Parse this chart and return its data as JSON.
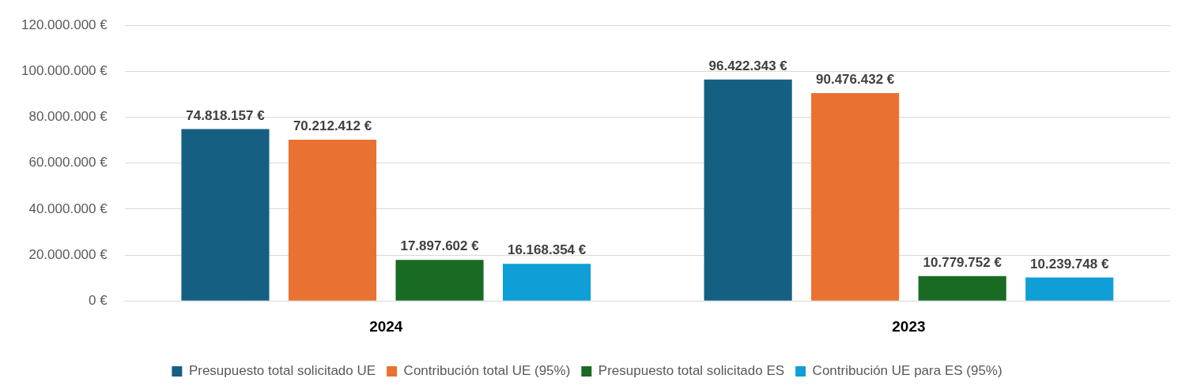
{
  "chart_data": {
    "type": "bar",
    "categories": [
      "2024",
      "2023"
    ],
    "series": [
      {
        "name": "Presupuesto total solicitado UE",
        "color": "#156082",
        "values": [
          74818157,
          96422343
        ],
        "value_labels": [
          "74.818.157 €",
          "96.422.343 €"
        ]
      },
      {
        "name": "Contribución total UE (95%)",
        "color": "#e97132",
        "values": [
          70212412,
          90476432
        ],
        "value_labels": [
          "70.212.412 €",
          "90.476.432 €"
        ]
      },
      {
        "name": "Presupuesto total solicitado ES",
        "color": "#196b24",
        "values": [
          17897602,
          10779752
        ],
        "value_labels": [
          "17.897.602 €",
          "10.779.752 €"
        ]
      },
      {
        "name": "Contribución UE para ES (95%)",
        "color": "#0f9ed5",
        "values": [
          16168354,
          10239748
        ],
        "value_labels": [
          "16.168.354 €",
          "10.239.748 €"
        ]
      }
    ],
    "ylim": [
      0,
      120000000
    ],
    "yticks": [
      {
        "value": 0,
        "label": "0 €"
      },
      {
        "value": 20000000,
        "label": "20.000.000 €"
      },
      {
        "value": 40000000,
        "label": "40.000.000 €"
      },
      {
        "value": 60000000,
        "label": "60.000.000 €"
      },
      {
        "value": 80000000,
        "label": "80.000.000 €"
      },
      {
        "value": 100000000,
        "label": "100.000.000 €"
      },
      {
        "value": 120000000,
        "label": "120.000.000 €"
      }
    ],
    "grid": "y",
    "legend": "bottom"
  }
}
